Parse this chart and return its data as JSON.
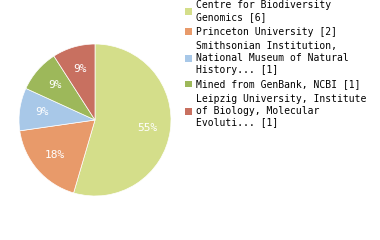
{
  "labels": [
    "Centre for Biodiversity\nGenomics [6]",
    "Princeton University [2]",
    "Smithsonian Institution,\nNational Museum of Natural\nHistory... [1]",
    "Mined from GenBank, NCBI [1]",
    "Leipzig University, Institute\nof Biology, Molecular\nEvoluti... [1]"
  ],
  "values": [
    6,
    2,
    1,
    1,
    1
  ],
  "colors": [
    "#d4de8a",
    "#e89a6a",
    "#a8c8e8",
    "#9db85a",
    "#c87060"
  ],
  "startangle": 90,
  "counterclock": false,
  "legend_fontsize": 7.0,
  "pct_fontsize": 8,
  "pct_distance": 0.7
}
